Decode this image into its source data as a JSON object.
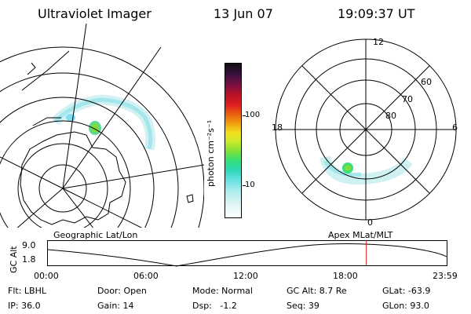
{
  "header": {
    "title": "Ultraviolet Imager",
    "date": "13 Jun 07",
    "time": "19:09:37 UT"
  },
  "left_panel": {
    "caption": "Geographic Lat/Lon",
    "projection": "geographic polar stereographic (southern hemisphere)",
    "emission_spots": [
      {
        "color": "#7fdd3a",
        "intensity": "high"
      },
      {
        "color": "#7ddff0",
        "intensity": "low"
      }
    ]
  },
  "colorbar": {
    "unit_label": "photon cm⁻²s⁻¹",
    "ticks": [
      "100",
      "10"
    ],
    "colors_bottom_to_top": [
      "#ffffff",
      "#d9f3f3",
      "#a6ecec",
      "#5fe0e0",
      "#2cd6b2",
      "#36e07a",
      "#7fe03a",
      "#c8ea2a",
      "#f2e01e",
      "#f0a010",
      "#ea6010",
      "#e02020",
      "#b81028",
      "#7a1040",
      "#3a1040",
      "#101010"
    ]
  },
  "right_panel": {
    "caption": "Apex MLat/MLT",
    "mlt_labels": {
      "top": "12",
      "left": "18",
      "right": "6",
      "bottom": "0"
    },
    "lat_labels": [
      "60",
      "70",
      "80"
    ]
  },
  "timeline": {
    "axis_label": "GC Alt",
    "y_ticks": [
      "9.0",
      "1.8"
    ],
    "x_ticks": [
      "00:00",
      "06:00",
      "12:00",
      "18:00",
      "23:59"
    ],
    "current_time_fraction": 0.7985,
    "marker_color": "#e02020"
  },
  "status": {
    "flt": "Flt: LBHL",
    "door": "Door: Open",
    "mode": "Mode: Normal",
    "gc_alt": "GC Alt: 8.7 Re",
    "glat": "GLat: -63.9",
    "ip": "IP: 36.0",
    "gain": "Gain: 14",
    "dsp": "Dsp:   -1.2",
    "seq": "Seq: 39",
    "glon": "GLon: 93.0"
  }
}
